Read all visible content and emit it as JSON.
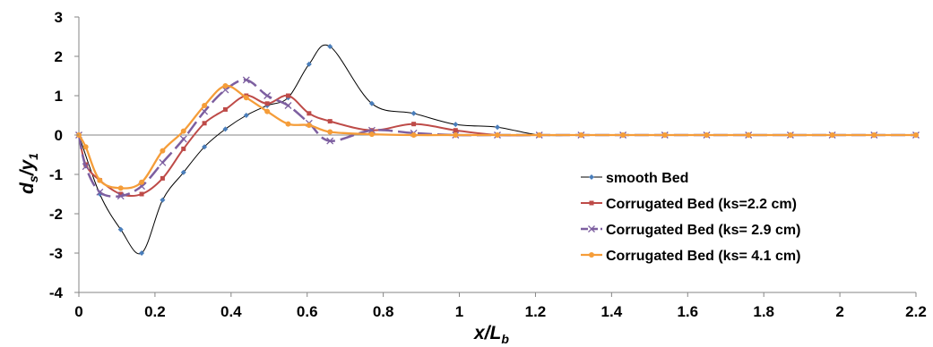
{
  "chart_data": {
    "type": "line",
    "title": "",
    "xlabel": {
      "main": "x/L",
      "sub": "b"
    },
    "ylabel": {
      "main": "d",
      "sub1": "s",
      "mid": "/y",
      "sub2": "1"
    },
    "xlim": [
      0,
      2.2
    ],
    "ylim": [
      -4,
      3
    ],
    "x_ticks": [
      0,
      0.2,
      0.4,
      0.6,
      0.8,
      1,
      1.2,
      1.4,
      1.6,
      1.8,
      2,
      2.2
    ],
    "x_tick_labels": [
      "0",
      "0.2",
      "0.4",
      "0.6",
      "0.8",
      "1",
      "1.2",
      "1.4",
      "1.6",
      "1.8",
      "2",
      "2.2"
    ],
    "y_ticks": [
      -4,
      -3,
      -2,
      -1,
      0,
      1,
      2,
      3
    ],
    "y_tick_labels": [
      "-4",
      "-3",
      "-2",
      "-1",
      "0",
      "1",
      "2",
      "3"
    ],
    "grid": false,
    "legend_position": "right",
    "series": [
      {
        "name": "smooth Bed",
        "color": "#4a7ebb",
        "marker": "diamond",
        "x": [
          0,
          0.055,
          0.11,
          0.165,
          0.22,
          0.275,
          0.33,
          0.385,
          0.44,
          0.495,
          0.55,
          0.605,
          0.66,
          0.77,
          0.88,
          0.99,
          1.1,
          1.21,
          1.32,
          1.43,
          1.54,
          1.65,
          1.76,
          1.87,
          1.98,
          2.09,
          2.2
        ],
        "y": [
          0,
          -1.5,
          -2.4,
          -3.0,
          -1.65,
          -0.95,
          -0.3,
          0.15,
          0.5,
          0.75,
          0.95,
          1.8,
          2.25,
          0.8,
          0.55,
          0.27,
          0.2,
          0.0,
          0.0,
          0.0,
          0.0,
          0.0,
          0.0,
          0.0,
          0.0,
          0.0,
          0.0
        ]
      },
      {
        "name": "Corrugated Bed (ks=2.2 cm)",
        "color": "#be4b48",
        "marker": "square",
        "x": [
          0,
          0.018,
          0.055,
          0.11,
          0.165,
          0.22,
          0.275,
          0.33,
          0.385,
          0.44,
          0.495,
          0.55,
          0.605,
          0.66,
          0.77,
          0.88,
          0.99,
          1.1,
          1.21,
          1.32,
          1.43,
          1.54,
          1.65,
          1.76,
          1.87,
          1.98,
          2.09,
          2.2
        ],
        "y": [
          0,
          -0.75,
          -1.15,
          -1.5,
          -1.5,
          -1.1,
          -0.35,
          0.3,
          0.65,
          1.0,
          0.8,
          1.0,
          0.55,
          0.35,
          0.12,
          0.28,
          0.12,
          0.0,
          0.0,
          0.0,
          0.0,
          0.0,
          0.0,
          0.0,
          0.0,
          0.0,
          0.0,
          0.0
        ]
      },
      {
        "name": "Corrugated Bed (ks= 2.9 cm)",
        "color": "#7d5fa0",
        "marker": "x",
        "x": [
          0,
          0.018,
          0.055,
          0.11,
          0.165,
          0.22,
          0.275,
          0.33,
          0.385,
          0.44,
          0.495,
          0.55,
          0.605,
          0.66,
          0.77,
          0.88,
          0.99,
          1.1,
          1.21,
          1.32,
          1.43,
          1.54,
          1.65,
          1.76,
          1.87,
          1.98,
          2.09,
          2.2
        ],
        "y": [
          0,
          -0.8,
          -1.45,
          -1.55,
          -1.3,
          -0.7,
          -0.1,
          0.6,
          1.15,
          1.4,
          1.0,
          0.75,
          0.3,
          -0.15,
          0.12,
          0.05,
          0.0,
          0.0,
          0.0,
          0.0,
          0.0,
          0.0,
          0.0,
          0.0,
          0.0,
          0.0,
          0.0,
          0.0
        ]
      },
      {
        "name": "Corrugated Bed (ks= 4.1 cm)",
        "color": "#f59d39",
        "marker": "circle",
        "x": [
          0,
          0.018,
          0.055,
          0.11,
          0.165,
          0.22,
          0.275,
          0.33,
          0.385,
          0.44,
          0.495,
          0.55,
          0.605,
          0.66,
          0.77,
          0.88,
          0.99,
          1.1,
          1.21,
          1.32,
          1.43,
          1.54,
          1.65,
          1.76,
          1.87,
          1.98,
          2.09,
          2.2
        ],
        "y": [
          0,
          -0.3,
          -1.15,
          -1.35,
          -1.2,
          -0.4,
          0.1,
          0.75,
          1.25,
          0.95,
          0.6,
          0.28,
          0.25,
          0.08,
          0.02,
          0.0,
          0.0,
          0.0,
          0.0,
          0.0,
          0.0,
          0.0,
          0.0,
          0.0,
          0.0,
          0.0,
          0.0,
          0.0
        ]
      }
    ]
  }
}
